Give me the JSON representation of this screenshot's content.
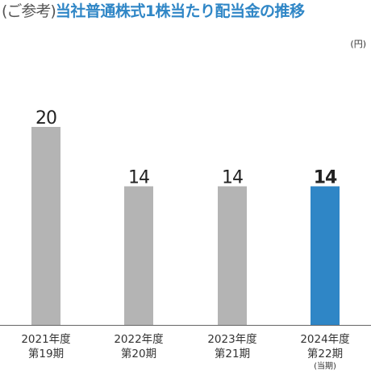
{
  "title": {
    "prefix": "(ご参考)",
    "main": "当社普通株式1株当たり配当金の推移"
  },
  "unit": "(円)",
  "colors": {
    "title_blue": "#2f86c6",
    "bar_gray": "#b4b4b4",
    "bar_highlight": "#2f86c6",
    "text": "#333333"
  },
  "chart_data": {
    "type": "bar",
    "title": "当社普通株式1株当たり配当金の推移",
    "ylabel": "",
    "xlabel": "",
    "unit": "(円)",
    "ylim": [
      0,
      24
    ],
    "grid": false,
    "categories": [
      {
        "year": "2021年度",
        "period": "第19期",
        "note": ""
      },
      {
        "year": "2022年度",
        "period": "第20期",
        "note": ""
      },
      {
        "year": "2023年度",
        "period": "第21期",
        "note": ""
      },
      {
        "year": "2024年度",
        "period": "第22期",
        "note": "(当期)"
      }
    ],
    "values": [
      20,
      14,
      14,
      14
    ],
    "highlight_index": 3
  }
}
